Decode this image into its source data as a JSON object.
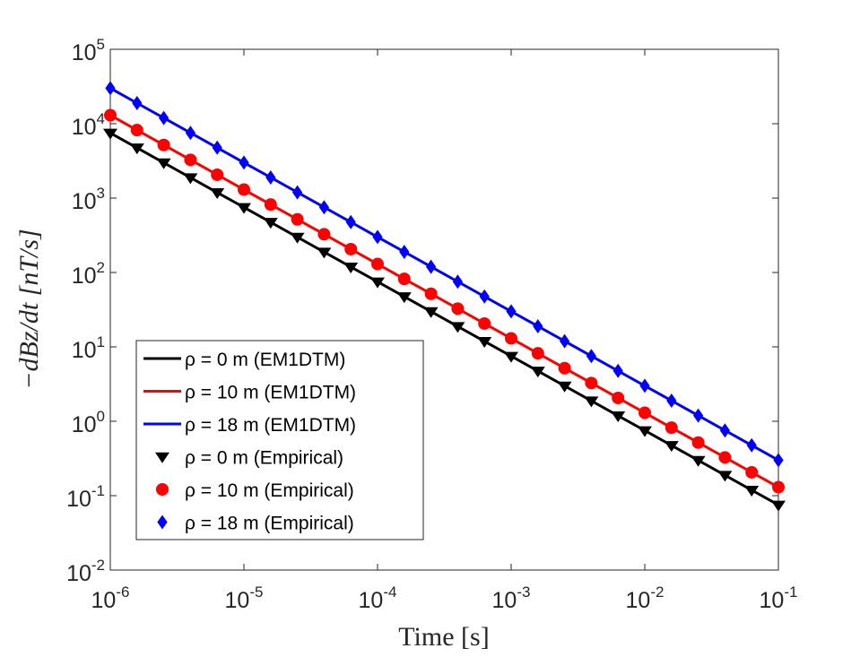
{
  "chart_data": {
    "type": "line",
    "xlabel": "Time [s]",
    "ylabel": "−dBz/dt [nT/s]",
    "xscale": "log",
    "yscale": "log",
    "legend": "southwest",
    "xlim": [
      1e-06,
      0.1
    ],
    "ylim": [
      0.01,
      100000
    ],
    "xticks": [
      {
        "value": 1e-06,
        "label": "10",
        "exponent": "-6"
      },
      {
        "value": 1e-05,
        "label": "10",
        "exponent": "-5"
      },
      {
        "value": 0.0001,
        "label": "10",
        "exponent": "-4"
      },
      {
        "value": 0.001,
        "label": "10",
        "exponent": "-3"
      },
      {
        "value": 0.01,
        "label": "10",
        "exponent": "-2"
      },
      {
        "value": 0.1,
        "label": "10",
        "exponent": "-1"
      }
    ],
    "yticks": [
      {
        "value": 0.01,
        "label": "10",
        "exponent": "-2"
      },
      {
        "value": 0.1,
        "label": "10",
        "exponent": "-1"
      },
      {
        "value": 1,
        "label": "10",
        "exponent": "0"
      },
      {
        "value": 10,
        "label": "10",
        "exponent": "1"
      },
      {
        "value": 100,
        "label": "10",
        "exponent": "2"
      },
      {
        "value": 1000,
        "label": "10",
        "exponent": "3"
      },
      {
        "value": 10000,
        "label": "10",
        "exponent": "4"
      },
      {
        "value": 100000,
        "label": "10",
        "exponent": "5"
      }
    ],
    "x": [
      1e-06,
      1.585e-06,
      2.512e-06,
      3.981e-06,
      6.31e-06,
      1e-05,
      1.585e-05,
      2.512e-05,
      3.981e-05,
      6.31e-05,
      0.0001,
      0.0001585,
      0.0002512,
      0.0003981,
      0.000631,
      0.001,
      0.001585,
      0.002512,
      0.003981,
      0.00631,
      0.01,
      0.01585,
      0.02512,
      0.03981,
      0.0631,
      0.1
    ],
    "series": [
      {
        "name": "ρ =  0 m (EM1DTM)",
        "style": "line",
        "color": "#000000",
        "values": [
          7500,
          4732,
          2985,
          1884,
          1189,
          750,
          473.2,
          298.5,
          188.4,
          118.9,
          75,
          47.32,
          29.85,
          18.84,
          11.89,
          7.5,
          4.732,
          2.985,
          1.884,
          1.189,
          0.75,
          0.4732,
          0.2985,
          0.1884,
          0.1189,
          0.075
        ]
      },
      {
        "name": "ρ = 10 m (EM1DTM)",
        "style": "line",
        "color": "#ff0000",
        "values": [
          13000,
          8202,
          5175,
          3265,
          2060,
          1300,
          820.2,
          517.5,
          326.5,
          206,
          130,
          82.02,
          51.75,
          32.65,
          20.6,
          13,
          8.202,
          5.175,
          3.265,
          2.06,
          1.3,
          0.8202,
          0.5175,
          0.3265,
          0.206,
          0.13
        ]
      },
      {
        "name": "ρ = 18 m (EM1DTM)",
        "style": "line",
        "color": "#0000ff",
        "values": [
          30000,
          18929,
          11943,
          7536,
          4755,
          3000,
          1893,
          1194,
          753.6,
          475.5,
          300,
          189.3,
          119.4,
          75.36,
          47.55,
          30,
          18.93,
          11.94,
          7.536,
          4.755,
          3,
          1.893,
          1.194,
          0.7536,
          0.4755,
          0.3
        ]
      },
      {
        "name": "ρ =  0 m (Empirical)",
        "style": "marker",
        "marker": "triangle-down",
        "color": "#000000",
        "values": [
          7500,
          4732,
          2985,
          1884,
          1189,
          750,
          473.2,
          298.5,
          188.4,
          118.9,
          75,
          47.32,
          29.85,
          18.84,
          11.89,
          7.5,
          4.732,
          2.985,
          1.884,
          1.189,
          0.75,
          0.4732,
          0.2985,
          0.1884,
          0.1189,
          0.075
        ]
      },
      {
        "name": "ρ = 10 m (Empirical)",
        "style": "marker",
        "marker": "circle",
        "color": "#ff0000",
        "values": [
          13000,
          8202,
          5175,
          3265,
          2060,
          1300,
          820.2,
          517.5,
          326.5,
          206,
          130,
          82.02,
          51.75,
          32.65,
          20.6,
          13,
          8.202,
          5.175,
          3.265,
          2.06,
          1.3,
          0.8202,
          0.5175,
          0.3265,
          0.206,
          0.13
        ]
      },
      {
        "name": "ρ = 18 m (Empirical)",
        "style": "marker",
        "marker": "diamond",
        "color": "#0000ff",
        "values": [
          30000,
          18929,
          11943,
          7536,
          4755,
          3000,
          1893,
          1194,
          753.6,
          475.5,
          300,
          189.3,
          119.4,
          75.36,
          47.55,
          30,
          18.93,
          11.94,
          7.536,
          4.755,
          3,
          1.893,
          1.194,
          0.7536,
          0.4755,
          0.3
        ]
      }
    ]
  }
}
